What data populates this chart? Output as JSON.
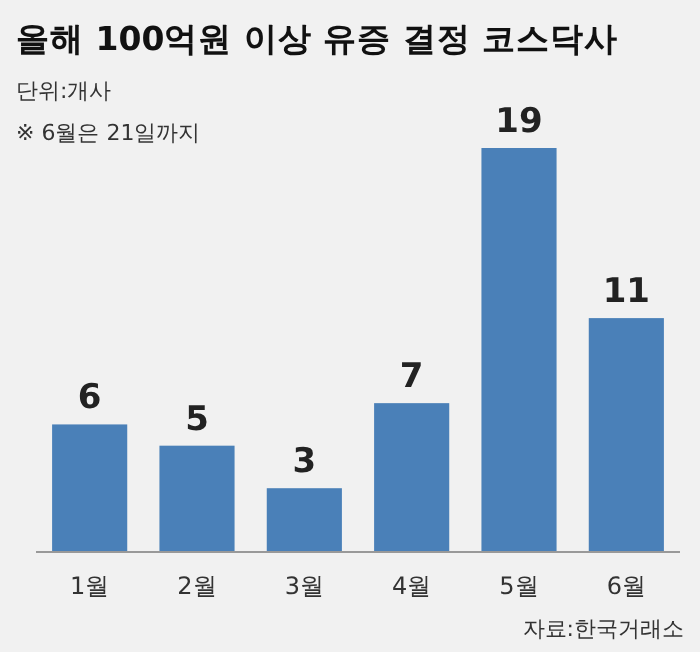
{
  "chart_data": {
    "type": "bar",
    "title": "올해 100억원 이상 유증 결정 코스닥사",
    "subtitle": "단위:개사",
    "annotations": [
      "※ 6월은 21일까지",
      "자료:한국거래소"
    ],
    "categories": [
      "1월",
      "2월",
      "3월",
      "4월",
      "5월",
      "6월"
    ],
    "values": [
      6,
      5,
      3,
      7,
      19,
      11
    ],
    "color": "#4a80b8",
    "data_labels": true
  }
}
